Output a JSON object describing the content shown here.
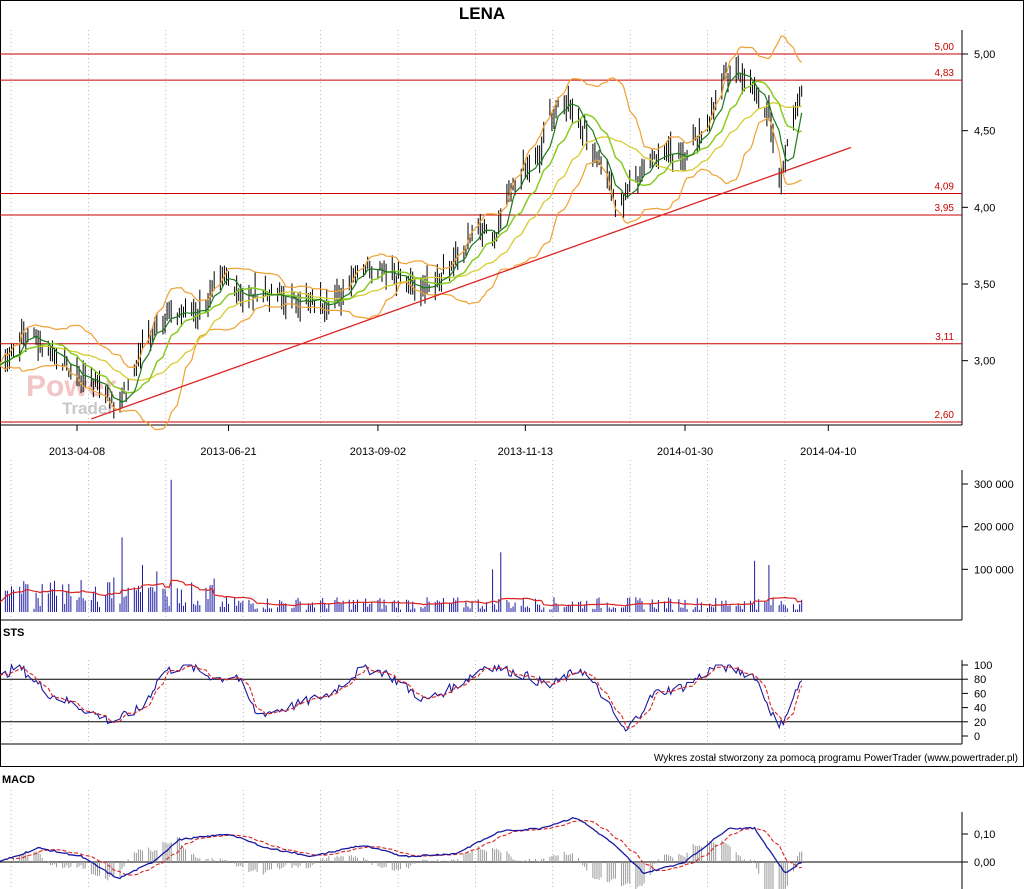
{
  "title": "LENA",
  "credit": "Wykres został stworzony za pomocą programu PowerTrader (www.powertrader.pl)",
  "watermark": {
    "line1": "Power",
    "line2": "Trader"
  },
  "colors": {
    "hline": "#cc0000",
    "trend": "#dd2222",
    "bollinger": "#f0a030",
    "ma_short": "#1a7a1a",
    "ma_mid": "#88cc22",
    "ma_long": "#d8cc30",
    "volume_bar": "#1a1aa0",
    "volume_avg": "#dd2222",
    "sts_k": "#1a1aa0",
    "sts_d": "#dd2222",
    "macd": "#1a1aa0",
    "signal": "#dd2222",
    "histogram": "#999999"
  },
  "chart_data": [
    {
      "type": "candlestick",
      "name": "price",
      "title": "LENA",
      "x_tick_labels": [
        "2013-04-08",
        "2013-06-21",
        "2013-09-02",
        "2013-11-13",
        "2014-01-30",
        "2014-04-10"
      ],
      "y_tick_labels": [
        "5,00",
        "4,50",
        "4,00",
        "3,50",
        "3,00"
      ],
      "ylim": [
        2.6,
        5.06
      ],
      "horizontal_lines": [
        {
          "label": "5,00",
          "value": 5.0
        },
        {
          "label": "4,83",
          "value": 4.83
        },
        {
          "label": "4,09",
          "value": 4.09
        },
        {
          "label": "3,95",
          "value": 3.95
        },
        {
          "label": "3,11",
          "value": 3.11
        },
        {
          "label": "2,60",
          "value": 2.6
        }
      ],
      "trendline": {
        "from": [
          "2013-04-15",
          2.62
        ],
        "to": [
          "2014-04-21",
          4.39
        ]
      },
      "close_path": [
        [
          "2013-03-01",
          2.97
        ],
        [
          "2013-03-15",
          3.18
        ],
        [
          "2013-03-28",
          3.05
        ],
        [
          "2013-04-08",
          2.9
        ],
        [
          "2013-04-20",
          2.85
        ],
        [
          "2013-04-26",
          2.7
        ],
        [
          "2013-05-03",
          2.8
        ],
        [
          "2013-05-10",
          3.1
        ],
        [
          "2013-05-17",
          3.25
        ],
        [
          "2013-05-25",
          3.3
        ],
        [
          "2013-06-05",
          3.32
        ],
        [
          "2013-06-14",
          3.45
        ],
        [
          "2013-06-21",
          3.55
        ],
        [
          "2013-06-28",
          3.4
        ],
        [
          "2013-07-05",
          3.45
        ],
        [
          "2013-07-20",
          3.4
        ],
        [
          "2013-08-05",
          3.38
        ],
        [
          "2013-08-15",
          3.42
        ],
        [
          "2013-08-22",
          3.6
        ],
        [
          "2013-08-29",
          3.62
        ],
        [
          "2013-09-10",
          3.58
        ],
        [
          "2013-09-20",
          3.45
        ],
        [
          "2013-10-01",
          3.55
        ],
        [
          "2013-10-10",
          3.65
        ],
        [
          "2013-10-20",
          3.85
        ],
        [
          "2013-10-30",
          3.8
        ],
        [
          "2013-11-05",
          4.1
        ],
        [
          "2013-11-13",
          4.25
        ],
        [
          "2013-11-20",
          4.3
        ],
        [
          "2013-11-25",
          4.6
        ],
        [
          "2013-12-05",
          4.7
        ],
        [
          "2013-12-12",
          4.5
        ],
        [
          "2013-12-20",
          4.3
        ],
        [
          "2013-12-28",
          4.0
        ],
        [
          "2014-01-06",
          4.2
        ],
        [
          "2014-01-15",
          4.35
        ],
        [
          "2014-01-30",
          4.35
        ],
        [
          "2014-02-10",
          4.55
        ],
        [
          "2014-02-18",
          4.82
        ],
        [
          "2014-02-25",
          4.9
        ],
        [
          "2014-03-05",
          4.75
        ],
        [
          "2014-03-12",
          4.6
        ],
        [
          "2014-03-17",
          4.15
        ],
        [
          "2014-03-21",
          4.4
        ],
        [
          "2014-03-28",
          4.75
        ]
      ]
    },
    {
      "type": "bar",
      "name": "volume",
      "y_tick_labels": [
        "300 000",
        "200 000",
        "100 000"
      ],
      "ylim": [
        0,
        320000
      ],
      "spikes": [
        [
          "2013-04-30",
          175000
        ],
        [
          "2013-05-10",
          110000
        ],
        [
          "2013-05-17",
          95000
        ],
        [
          "2013-05-24",
          310000
        ],
        [
          "2013-10-28",
          100000
        ],
        [
          "2013-11-01",
          140000
        ],
        [
          "2014-03-05",
          120000
        ],
        [
          "2014-03-12",
          110000
        ]
      ]
    },
    {
      "type": "line",
      "name": "STS",
      "title": "STS",
      "y_tick_labels": [
        "100",
        "80",
        "60",
        "40",
        "20",
        "0"
      ],
      "ylim": [
        0,
        100
      ],
      "reference_lines": [
        80,
        20
      ],
      "k_path": [
        [
          "2013-03-01",
          80
        ],
        [
          "2013-03-10",
          100
        ],
        [
          "2013-03-25",
          60
        ],
        [
          "2013-04-10",
          40
        ],
        [
          "2013-04-25",
          20
        ],
        [
          "2013-05-10",
          40
        ],
        [
          "2013-05-20",
          90
        ],
        [
          "2013-06-01",
          100
        ],
        [
          "2013-06-15",
          80
        ],
        [
          "2013-06-25",
          85
        ],
        [
          "2013-07-05",
          30
        ],
        [
          "2013-07-20",
          40
        ],
        [
          "2013-08-10",
          60
        ],
        [
          "2013-08-25",
          95
        ],
        [
          "2013-09-05",
          90
        ],
        [
          "2013-09-25",
          50
        ],
        [
          "2013-10-10",
          70
        ],
        [
          "2013-10-25",
          100
        ],
        [
          "2013-11-13",
          85
        ],
        [
          "2013-11-25",
          70
        ],
        [
          "2013-12-10",
          95
        ],
        [
          "2013-12-20",
          60
        ],
        [
          "2014-01-01",
          5
        ],
        [
          "2014-01-15",
          60
        ],
        [
          "2014-01-30",
          70
        ],
        [
          "2014-02-15",
          100
        ],
        [
          "2014-03-05",
          85
        ],
        [
          "2014-03-17",
          10
        ],
        [
          "2014-03-28",
          80
        ]
      ]
    },
    {
      "type": "line",
      "name": "MACD",
      "title": "MACD",
      "y_tick_labels": [
        "0,10",
        "0,00"
      ],
      "ylim": [
        -0.07,
        0.17
      ],
      "macd_path": [
        [
          "2013-03-01",
          0.0
        ],
        [
          "2013-03-20",
          0.05
        ],
        [
          "2013-04-10",
          0.02
        ],
        [
          "2013-04-28",
          -0.06
        ],
        [
          "2013-05-15",
          0.0
        ],
        [
          "2013-05-28",
          0.08
        ],
        [
          "2013-06-21",
          0.1
        ],
        [
          "2013-07-10",
          0.05
        ],
        [
          "2013-08-01",
          0.02
        ],
        [
          "2013-08-25",
          0.06
        ],
        [
          "2013-09-15",
          0.02
        ],
        [
          "2013-10-10",
          0.03
        ],
        [
          "2013-11-01",
          0.11
        ],
        [
          "2013-11-20",
          0.12
        ],
        [
          "2013-12-08",
          0.16
        ],
        [
          "2013-12-25",
          0.07
        ],
        [
          "2014-01-10",
          -0.04
        ],
        [
          "2014-01-30",
          0.0
        ],
        [
          "2014-02-20",
          0.12
        ],
        [
          "2014-03-05",
          0.12
        ],
        [
          "2014-03-20",
          -0.04
        ],
        [
          "2014-03-28",
          0.0
        ]
      ]
    }
  ]
}
